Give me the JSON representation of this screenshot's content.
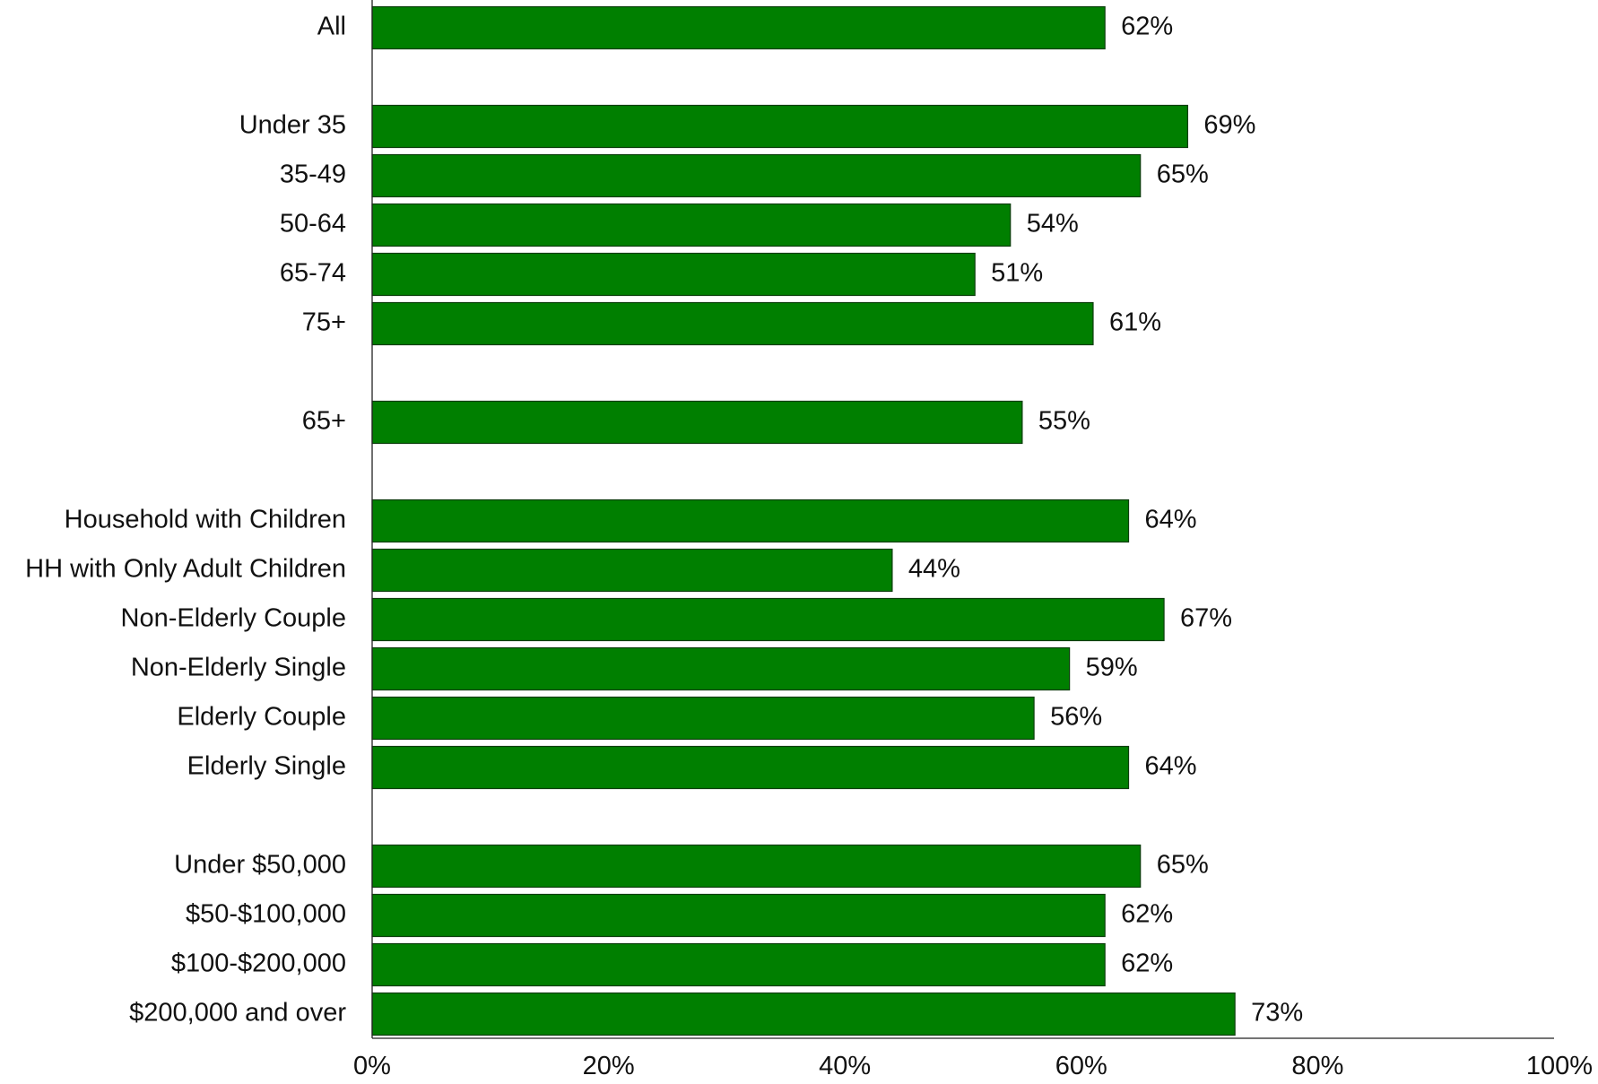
{
  "chart_data": {
    "type": "bar",
    "orientation": "horizontal",
    "categories": [
      "All",
      "Under 35",
      "35-49",
      "50-64",
      "65-74",
      "75+",
      "65+",
      "Household with Children",
      "HH with Only Adult Children",
      "Non-Elderly Couple",
      "Non-Elderly Single",
      "Elderly Couple",
      "Elderly Single",
      "Under $50,000",
      "$50-$100,000",
      "$100-$200,000",
      "$200,000 and over"
    ],
    "values": [
      62,
      69,
      65,
      54,
      51,
      61,
      55,
      64,
      44,
      67,
      59,
      56,
      64,
      65,
      62,
      62,
      73
    ],
    "value_labels": [
      "62%",
      "69%",
      "65%",
      "54%",
      "51%",
      "61%",
      "55%",
      "64%",
      "44%",
      "67%",
      "59%",
      "56%",
      "64%",
      "65%",
      "62%",
      "62%",
      "73%"
    ],
    "groups": [
      [
        "All"
      ],
      [
        "Under 35",
        "35-49",
        "50-64",
        "65-74",
        "75+"
      ],
      [
        "65+"
      ],
      [
        "Household with Children",
        "HH with Only Adult Children",
        "Non-Elderly Couple",
        "Non-Elderly Single",
        "Elderly Couple",
        "Elderly Single"
      ],
      [
        "Under $50,000",
        "$50-$100,000",
        "$100-$200,000",
        "$200,000 and over"
      ]
    ],
    "xlim": [
      0,
      100
    ],
    "x_ticks": [
      0,
      20,
      40,
      60,
      80,
      100
    ],
    "x_tick_labels": [
      "0%",
      "20%",
      "40%",
      "60%",
      "80%",
      "100%"
    ],
    "title": "",
    "xlabel": "",
    "ylabel": "",
    "grid": false,
    "legend": "none",
    "bar_color": "#007f00",
    "bar_edge_color": "#0b3d0b"
  }
}
